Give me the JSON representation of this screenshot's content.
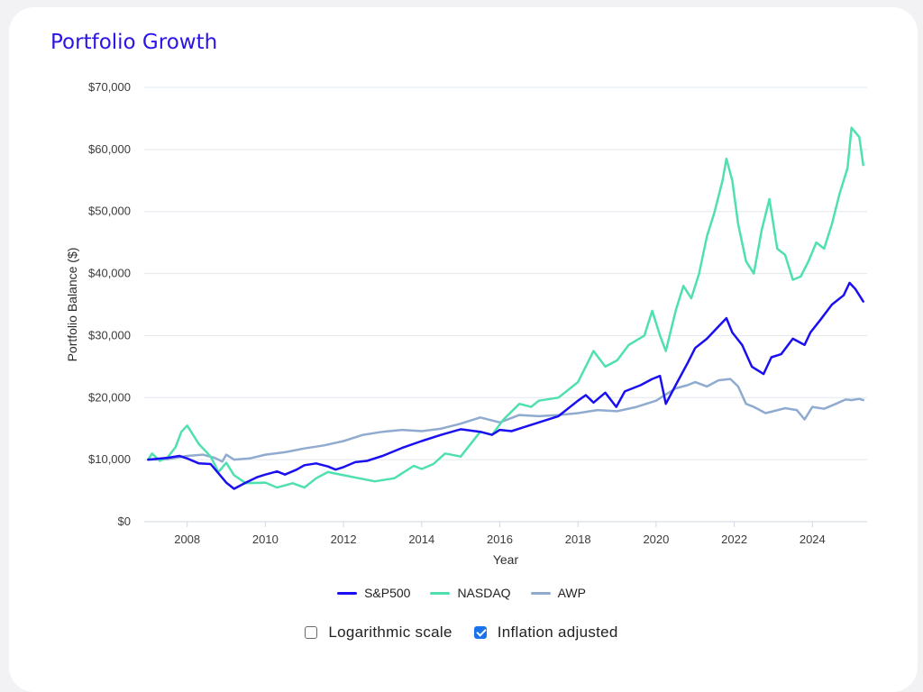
{
  "title": "Portfolio Growth",
  "legend": [
    {
      "label": "S&P500",
      "color": "#1a0ff0"
    },
    {
      "label": "NASDAQ",
      "color": "#4fe0b0"
    },
    {
      "label": "AWP",
      "color": "#8fabd0"
    }
  ],
  "controls": {
    "log_scale": {
      "label": "Logarithmic scale",
      "checked": false
    },
    "inflation": {
      "label": "Inflation adjusted",
      "checked": true
    }
  },
  "chart_data": {
    "type": "line",
    "title": "Portfolio Growth",
    "xlabel": "Year",
    "ylabel": "Portfolio Balance ($)",
    "xlim": [
      2006.9,
      2025.4
    ],
    "ylim": [
      0,
      70000
    ],
    "x_ticks": [
      2008,
      2010,
      2012,
      2014,
      2016,
      2018,
      2020,
      2022,
      2024
    ],
    "x_tick_labels": [
      "2008",
      "2010",
      "2012",
      "2014",
      "2016",
      "2018",
      "2020",
      "2022",
      "2024"
    ],
    "y_ticks": [
      0,
      10000,
      20000,
      30000,
      40000,
      50000,
      60000,
      70000
    ],
    "y_tick_labels": [
      "$0",
      "$10,000",
      "$20,000",
      "$30,000",
      "$40,000",
      "$50,000",
      "$60,000",
      "$70,000"
    ],
    "grid": true,
    "legend_position": "bottom",
    "series": [
      {
        "name": "S&P500",
        "color": "#1a0ff0",
        "x": [
          2007.0,
          2007.5,
          2007.8,
          2008.0,
          2008.3,
          2008.6,
          2008.8,
          2009.0,
          2009.2,
          2009.5,
          2009.8,
          2010.0,
          2010.3,
          2010.5,
          2010.8,
          2011.0,
          2011.3,
          2011.6,
          2011.8,
          2012.0,
          2012.3,
          2012.6,
          2013.0,
          2013.5,
          2014.0,
          2014.5,
          2015.0,
          2015.5,
          2015.8,
          2016.0,
          2016.3,
          2016.6,
          2017.0,
          2017.5,
          2018.0,
          2018.2,
          2018.4,
          2018.7,
          2018.98,
          2019.2,
          2019.6,
          2019.9,
          2020.1,
          2020.25,
          2020.5,
          2020.8,
          2021.0,
          2021.3,
          2021.6,
          2021.8,
          2021.95,
          2022.2,
          2022.45,
          2022.75,
          2022.95,
          2023.2,
          2023.5,
          2023.8,
          2023.95,
          2024.2,
          2024.5,
          2024.8,
          2024.95,
          2025.1,
          2025.3
        ],
        "y": [
          10000,
          10300,
          10600,
          10200,
          9400,
          9300,
          7800,
          6300,
          5300,
          6300,
          7200,
          7600,
          8100,
          7600,
          8400,
          9100,
          9400,
          8900,
          8400,
          8800,
          9600,
          9800,
          10600,
          11900,
          13000,
          14000,
          14900,
          14500,
          14000,
          14800,
          14600,
          15200,
          16000,
          17000,
          19500,
          20400,
          19200,
          20800,
          18500,
          21000,
          22000,
          23000,
          23500,
          19000,
          22000,
          25500,
          28000,
          29500,
          31500,
          32800,
          30500,
          28500,
          25000,
          23800,
          26500,
          27000,
          29500,
          28500,
          30500,
          32500,
          35000,
          36500,
          38500,
          37500,
          35500
        ]
      },
      {
        "name": "NASDAQ",
        "color": "#4fe0b0",
        "x": [
          2007.0,
          2007.1,
          2007.3,
          2007.5,
          2007.7,
          2007.85,
          2008.0,
          2008.3,
          2008.6,
          2008.8,
          2009.0,
          2009.2,
          2009.5,
          2010.0,
          2010.3,
          2010.7,
          2011.0,
          2011.3,
          2011.6,
          2012.0,
          2012.4,
          2012.8,
          2013.3,
          2013.8,
          2014.0,
          2014.3,
          2014.6,
          2015.0,
          2015.5,
          2015.8,
          2016.1,
          2016.5,
          2016.8,
          2017.0,
          2017.5,
          2018.0,
          2018.4,
          2018.7,
          2019.0,
          2019.3,
          2019.7,
          2019.9,
          2020.1,
          2020.25,
          2020.5,
          2020.7,
          2020.9,
          2021.1,
          2021.3,
          2021.5,
          2021.7,
          2021.8,
          2021.95,
          2022.1,
          2022.3,
          2022.5,
          2022.7,
          2022.9,
          2023.1,
          2023.3,
          2023.5,
          2023.7,
          2023.9,
          2024.1,
          2024.3,
          2024.5,
          2024.7,
          2024.9,
          2025.0,
          2025.2,
          2025.3
        ],
        "y": [
          10000,
          11000,
          9800,
          10400,
          12000,
          14500,
          15500,
          12500,
          10500,
          8000,
          9500,
          7500,
          6200,
          6300,
          5500,
          6200,
          5500,
          7000,
          8000,
          7500,
          7000,
          6500,
          7000,
          9000,
          8500,
          9300,
          11000,
          10500,
          14500,
          14000,
          16500,
          19000,
          18500,
          19500,
          20000,
          22500,
          27500,
          25000,
          26000,
          28500,
          30000,
          34000,
          30000,
          27500,
          34000,
          38000,
          36000,
          40000,
          46000,
          50000,
          55000,
          58500,
          55000,
          48000,
          42000,
          40000,
          47000,
          52000,
          44000,
          43000,
          39000,
          39500,
          42000,
          45000,
          44000,
          48000,
          53000,
          57000,
          63500,
          62000,
          57500
        ]
      },
      {
        "name": "AWP",
        "color": "#8fabd0",
        "x": [
          2007.0,
          2007.5,
          2008.0,
          2008.4,
          2008.7,
          2008.9,
          2009.0,
          2009.2,
          2009.6,
          2010.0,
          2010.5,
          2011.0,
          2011.5,
          2012.0,
          2012.5,
          2013.0,
          2013.5,
          2014.0,
          2014.5,
          2015.0,
          2015.5,
          2016.0,
          2016.5,
          2017.0,
          2017.5,
          2018.0,
          2018.5,
          2019.0,
          2019.5,
          2020.0,
          2020.25,
          2020.5,
          2020.8,
          2021.0,
          2021.3,
          2021.6,
          2021.9,
          2022.1,
          2022.3,
          2022.5,
          2022.8,
          2023.0,
          2023.3,
          2023.6,
          2023.8,
          2024.0,
          2024.3,
          2024.6,
          2024.85,
          2025.0,
          2025.2,
          2025.3
        ],
        "y": [
          10000,
          10100,
          10600,
          10800,
          10300,
          9700,
          10800,
          10000,
          10200,
          10800,
          11200,
          11800,
          12300,
          13000,
          14000,
          14500,
          14800,
          14600,
          15000,
          15800,
          16800,
          16000,
          17200,
          17000,
          17200,
          17500,
          18000,
          17800,
          18500,
          19500,
          20500,
          21500,
          22000,
          22500,
          21800,
          22800,
          23000,
          21800,
          19000,
          18500,
          17500,
          17800,
          18300,
          18000,
          16500,
          18500,
          18200,
          19000,
          19700,
          19600,
          19800,
          19600
        ]
      }
    ]
  }
}
